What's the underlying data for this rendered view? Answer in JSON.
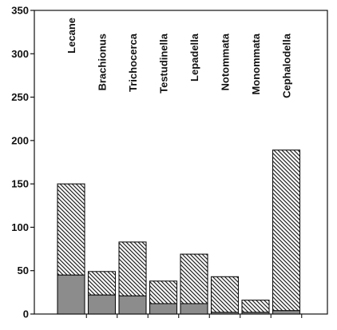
{
  "chart_data": {
    "type": "bar",
    "stacked": true,
    "categories": [
      "Lecane",
      "Brachionus",
      "Trichocerca",
      "Testudinella",
      "Lepadella",
      "Notommata",
      "Monommata",
      "Cephalodella"
    ],
    "series": [
      {
        "fill": "solid-grey",
        "color": "#8c8c8c",
        "values": [
          45,
          22,
          21,
          12,
          12,
          2,
          2,
          4
        ]
      },
      {
        "fill": "diagonal-hatch",
        "color": "#222222",
        "values": [
          105,
          27,
          62,
          26,
          57,
          41,
          14,
          185
        ]
      }
    ],
    "totals": [
      150,
      49,
      83,
      38,
      69,
      43,
      16,
      189
    ],
    "ylim": [
      0,
      350
    ],
    "yticks": [
      0,
      50,
      100,
      150,
      200,
      250,
      300,
      350
    ],
    "title": "",
    "xlabel": "",
    "ylabel": "",
    "grid": false,
    "legend": "none",
    "category_labels_position": "top-rotated"
  }
}
